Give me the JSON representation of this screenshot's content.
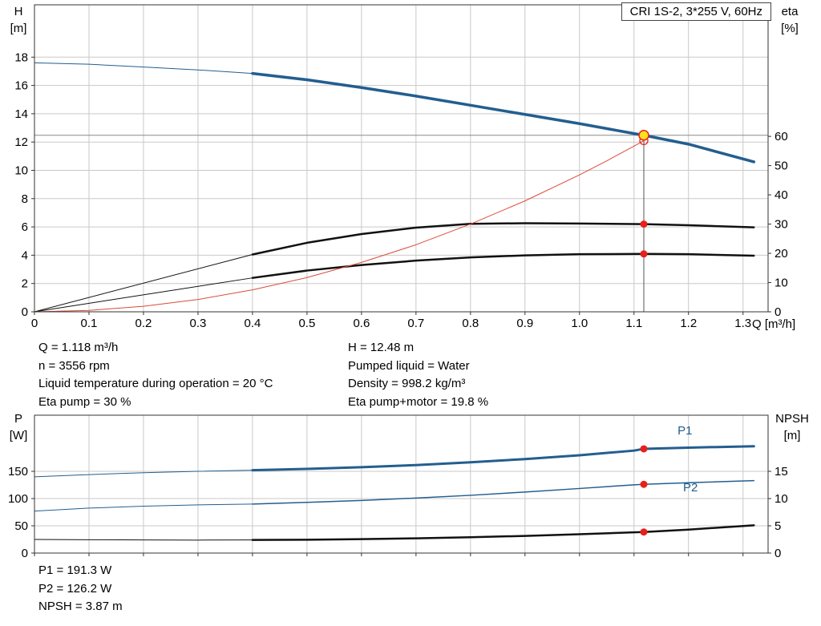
{
  "header": {
    "title": "CRI 1S-2, 3*255 V, 60Hz"
  },
  "colors": {
    "blue": "#235e8f",
    "black": "#111111",
    "red": "#dd4a3a",
    "red_dot": "#e8201a",
    "yellow": "#ffe01a",
    "grid": "#c9c9c9",
    "axis": "#333333",
    "op_h_line": "#8a8a8a",
    "op_v_line": "#555555"
  },
  "chart_data": [
    {
      "type": "line",
      "title": "CRI 1S-2, 3*255 V, 60Hz",
      "xlabel": "Q [m³/h]",
      "axis_labels": {
        "left1": "H",
        "left2": "[m]",
        "right1": "eta",
        "right2": "[%]",
        "x": "Q [m³/h]"
      },
      "xlim": [
        0,
        1.346
      ],
      "ylim_left": [
        0,
        21.7
      ],
      "ylim_right": [
        0,
        105
      ],
      "x_ticks": [
        0,
        0.1,
        0.2,
        0.3,
        0.4,
        0.5,
        0.6,
        0.7,
        0.8,
        0.9,
        1.0,
        1.1,
        1.2,
        1.3
      ],
      "x_tick_labels": [
        "0",
        "0.1",
        "0.2",
        "0.3",
        "0.4",
        "0.5",
        "0.6",
        "0.7",
        "0.8",
        "0.9",
        "1.0",
        "1.1",
        "1.2",
        "1.3"
      ],
      "y_ticks_left": [
        0,
        2,
        4,
        6,
        8,
        10,
        12,
        14,
        16,
        18
      ],
      "y_ticks_right": [
        0,
        10,
        20,
        30,
        40,
        50,
        60
      ],
      "grid": true,
      "series": [
        {
          "name": "head-curve-below-min-flow",
          "axis": "left",
          "color": "blue",
          "width": 1,
          "points": [
            [
              0,
              17.6
            ],
            [
              0.1,
              17.5
            ],
            [
              0.2,
              17.3
            ],
            [
              0.3,
              17.1
            ],
            [
              0.4,
              16.85
            ]
          ]
        },
        {
          "name": "head-curve",
          "axis": "left",
          "color": "blue",
          "width": 3.5,
          "points": [
            [
              0.4,
              16.85
            ],
            [
              0.5,
              16.4
            ],
            [
              0.6,
              15.85
            ],
            [
              0.7,
              15.25
            ],
            [
              0.8,
              14.6
            ],
            [
              0.9,
              13.95
            ],
            [
              1.0,
              13.3
            ],
            [
              1.1,
              12.6
            ],
            [
              1.118,
              12.48
            ],
            [
              1.2,
              11.85
            ],
            [
              1.32,
              10.6
            ]
          ]
        },
        {
          "name": "eta-pump-below-min-flow",
          "axis": "right",
          "color": "black",
          "width": 1,
          "points": [
            [
              0,
              0
            ],
            [
              0.4,
              19.6
            ]
          ]
        },
        {
          "name": "eta-pump",
          "axis": "right",
          "color": "black",
          "width": 2.5,
          "points": [
            [
              0.4,
              19.6
            ],
            [
              0.5,
              23.6
            ],
            [
              0.6,
              26.6
            ],
            [
              0.7,
              28.8
            ],
            [
              0.8,
              30.1
            ],
            [
              0.9,
              30.3
            ],
            [
              1.0,
              30.2
            ],
            [
              1.118,
              30.0
            ],
            [
              1.2,
              29.6
            ],
            [
              1.32,
              28.9
            ]
          ]
        },
        {
          "name": "eta-pump-motor-below-min-flow",
          "axis": "right",
          "color": "black",
          "width": 1,
          "points": [
            [
              0,
              0
            ],
            [
              0.4,
              11.6
            ]
          ]
        },
        {
          "name": "eta-pump-motor",
          "axis": "right",
          "color": "black",
          "width": 2.5,
          "points": [
            [
              0.4,
              11.6
            ],
            [
              0.5,
              14.1
            ],
            [
              0.6,
              16.0
            ],
            [
              0.7,
              17.5
            ],
            [
              0.8,
              18.6
            ],
            [
              0.9,
              19.3
            ],
            [
              1.0,
              19.7
            ],
            [
              1.118,
              19.8
            ],
            [
              1.2,
              19.7
            ],
            [
              1.32,
              19.2
            ]
          ]
        },
        {
          "name": "system-curve",
          "axis": "left",
          "color": "red",
          "width": 1,
          "points": [
            [
              0,
              0
            ],
            [
              0.1,
              0.1
            ],
            [
              0.2,
              0.39
            ],
            [
              0.3,
              0.87
            ],
            [
              0.4,
              1.55
            ],
            [
              0.5,
              2.42
            ],
            [
              0.6,
              3.49
            ],
            [
              0.7,
              4.74
            ],
            [
              0.8,
              6.2
            ],
            [
              0.9,
              7.84
            ],
            [
              1.0,
              9.68
            ],
            [
              1.05,
              10.67
            ],
            [
              1.1,
              11.71
            ],
            [
              1.118,
              12.1
            ]
          ]
        }
      ],
      "op_point": {
        "q": 1.118,
        "h": 12.48
      },
      "markers": [
        {
          "x": 1.118,
          "y": 12.1,
          "axis": "left",
          "style": "open-red"
        },
        {
          "x": 1.118,
          "y": 30.0,
          "axis": "right",
          "style": "dot-red"
        },
        {
          "x": 1.118,
          "y": 19.8,
          "axis": "right",
          "style": "dot-red"
        },
        {
          "x": 1.118,
          "y": 12.48,
          "axis": "left",
          "style": "duty-point-yellow"
        }
      ],
      "labels": []
    },
    {
      "type": "line",
      "axis_labels": {
        "left1": "P",
        "left2": "[W]",
        "right1": "NPSH",
        "right2": "[m]"
      },
      "xlim": [
        0,
        1.346
      ],
      "ylim_left": [
        0,
        253
      ],
      "ylim_right": [
        0,
        25.3
      ],
      "x_ticks": [
        0,
        0.1,
        0.2,
        0.3,
        0.4,
        0.5,
        0.6,
        0.7,
        0.8,
        0.9,
        1.0,
        1.1,
        1.2,
        1.3
      ],
      "x_tick_labels": [],
      "y_ticks_left": [
        0,
        50,
        100,
        150
      ],
      "y_ticks_right": [
        0,
        5,
        10,
        15
      ],
      "grid": true,
      "series": [
        {
          "name": "p1-below-min-flow",
          "axis": "left",
          "color": "blue",
          "width": 1,
          "points": [
            [
              0,
              140
            ],
            [
              0.1,
              144
            ],
            [
              0.2,
              147.5
            ],
            [
              0.3,
              150
            ],
            [
              0.4,
              152
            ]
          ]
        },
        {
          "name": "p1",
          "axis": "left",
          "color": "blue",
          "width": 3,
          "points": [
            [
              0.4,
              152
            ],
            [
              0.5,
              154.5
            ],
            [
              0.6,
              157.5
            ],
            [
              0.7,
              161.5
            ],
            [
              0.8,
              166.5
            ],
            [
              0.9,
              172.5
            ],
            [
              1.0,
              179.5
            ],
            [
              1.1,
              188
            ],
            [
              1.118,
              191.3
            ],
            [
              1.2,
              193.5
            ],
            [
              1.32,
              196
            ]
          ]
        },
        {
          "name": "p2-below-min-flow",
          "axis": "left",
          "color": "blue",
          "width": 1,
          "points": [
            [
              0,
              77
            ],
            [
              0.1,
              82.5
            ],
            [
              0.2,
              86
            ],
            [
              0.3,
              88.5
            ],
            [
              0.4,
              90
            ]
          ]
        },
        {
          "name": "p2",
          "axis": "left",
          "color": "blue",
          "width": 1.5,
          "points": [
            [
              0.4,
              90
            ],
            [
              0.5,
              93
            ],
            [
              0.6,
              96.5
            ],
            [
              0.7,
              101
            ],
            [
              0.8,
              106
            ],
            [
              0.9,
              112
            ],
            [
              1.0,
              118.5
            ],
            [
              1.1,
              125.3
            ],
            [
              1.118,
              126.2
            ],
            [
              1.2,
              129
            ],
            [
              1.32,
              133
            ]
          ]
        },
        {
          "name": "npsh-below-min-flow",
          "axis": "right",
          "color": "black",
          "width": 1,
          "points": [
            [
              0,
              2.5
            ],
            [
              0.1,
              2.45
            ],
            [
              0.2,
              2.4
            ],
            [
              0.3,
              2.38
            ],
            [
              0.4,
              2.4
            ]
          ]
        },
        {
          "name": "npsh",
          "axis": "right",
          "color": "black",
          "width": 2.5,
          "points": [
            [
              0.4,
              2.4
            ],
            [
              0.5,
              2.45
            ],
            [
              0.6,
              2.55
            ],
            [
              0.7,
              2.7
            ],
            [
              0.8,
              2.9
            ],
            [
              0.9,
              3.15
            ],
            [
              1.0,
              3.45
            ],
            [
              1.1,
              3.8
            ],
            [
              1.118,
              3.87
            ],
            [
              1.2,
              4.3
            ],
            [
              1.32,
              5.1
            ]
          ]
        }
      ],
      "markers": [
        {
          "x": 1.118,
          "y": 191.3,
          "axis": "left",
          "style": "dot-red"
        },
        {
          "x": 1.118,
          "y": 126.2,
          "axis": "left",
          "style": "dot-red"
        },
        {
          "x": 1.118,
          "y": 3.87,
          "axis": "right",
          "style": "dot-red"
        }
      ],
      "labels": [
        {
          "x": 1.18,
          "y": 218,
          "axis": "left",
          "text": "P1",
          "color": "blue"
        },
        {
          "x": 1.19,
          "y": 113,
          "axis": "left",
          "text": "P2",
          "color": "blue"
        }
      ]
    }
  ],
  "info_top": {
    "left": [
      "Q = 1.118 m³/h",
      "n = 3556 rpm",
      "Liquid temperature during operation = 20 °C",
      "Eta pump = 30 %"
    ],
    "right": [
      "H = 12.48 m",
      "Pumped liquid = Water",
      "Density = 998.2 kg/m³",
      "Eta pump+motor = 19.8 %"
    ]
  },
  "info_bottom": [
    "P1 = 191.3 W",
    "P2 = 126.2 W",
    "NPSH = 3.87 m"
  ]
}
